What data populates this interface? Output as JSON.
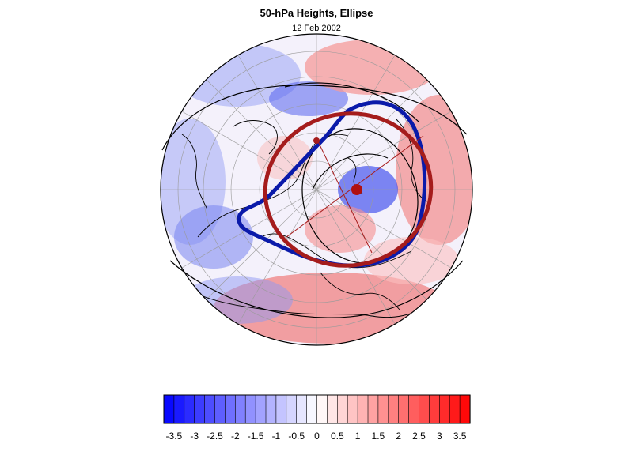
{
  "header": {
    "title": "50-hPa Heights, Ellipse",
    "date": "12 Feb 2002"
  },
  "colorbar": {
    "labels": [
      "-3.5",
      "-3",
      "-2.5",
      "-2",
      "-1.5",
      "-1",
      "-0.5",
      "0",
      "0.5",
      "1",
      "1.5",
      "2",
      "2.5",
      "3",
      "3.5"
    ],
    "min": -3.75,
    "max": 3.75,
    "step": 0.25,
    "low_color": "#0000ff",
    "mid_color": "#ffffff",
    "high_color": "#ff0000"
  },
  "map": {
    "projection": "north-polar-orthographic",
    "anomaly_negative_color": "#6f7cf2",
    "anomaly_positive_color": "#f27f7f",
    "ellipse_observed_color": "#0a1aaa",
    "ellipse_fit_color": "#a51c1c",
    "vortex_center_color": "#b01010",
    "coastline_color": "#000000"
  }
}
